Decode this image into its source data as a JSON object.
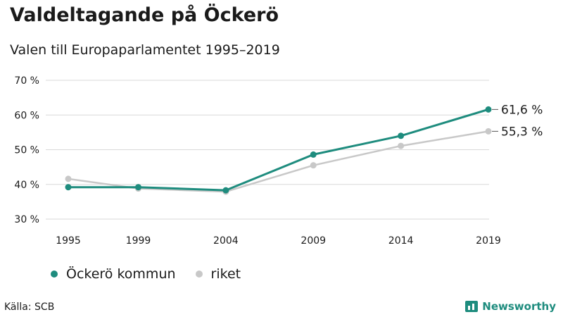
{
  "title": "Valdeltagande på Öckerö",
  "subtitle": "Valen till Europaparlamentet 1995–2019",
  "source": "Källa: SCB",
  "brand": "Newsworthy",
  "colors": {
    "accent": "#1e8c7e",
    "secondary": "#c8c8c8",
    "grid": "#d9d9d9"
  },
  "chart_data": {
    "type": "line",
    "categories": [
      "1995",
      "1999",
      "2004",
      "2009",
      "2014",
      "2019"
    ],
    "x": [
      1995,
      1999,
      2004,
      2009,
      2014,
      2019
    ],
    "ylim": [
      30,
      70
    ],
    "yticks": [
      30,
      40,
      50,
      60,
      70
    ],
    "ytick_labels": [
      "30 %",
      "40 %",
      "50 %",
      "60 %",
      "70 %"
    ],
    "grid": true,
    "legend_position": "bottom-left",
    "series": [
      {
        "name": "Öckerö kommun",
        "color": "#1e8c7e",
        "values": [
          39.2,
          39.2,
          38.3,
          48.6,
          54.0,
          61.6
        ],
        "end_label": "61,6 %"
      },
      {
        "name": "riket",
        "color": "#c8c8c8",
        "values": [
          41.6,
          38.8,
          37.9,
          45.5,
          51.1,
          55.3
        ],
        "end_label": "55,3 %"
      }
    ]
  }
}
